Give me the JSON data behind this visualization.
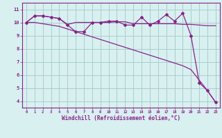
{
  "x": [
    0,
    1,
    2,
    3,
    4,
    5,
    6,
    7,
    8,
    9,
    10,
    11,
    12,
    13,
    14,
    15,
    16,
    17,
    18,
    19,
    20,
    21,
    22,
    23
  ],
  "line1": [
    10.0,
    10.5,
    10.5,
    10.4,
    10.3,
    9.8,
    9.3,
    9.3,
    10.0,
    10.0,
    10.1,
    10.1,
    9.8,
    9.8,
    10.4,
    9.8,
    10.1,
    10.6,
    10.1,
    10.7,
    9.0,
    5.4,
    4.8,
    3.9
  ],
  "line2": [
    10.0,
    10.5,
    10.5,
    10.4,
    10.3,
    9.85,
    10.0,
    10.0,
    10.0,
    10.0,
    10.0,
    10.05,
    10.05,
    9.9,
    9.9,
    9.9,
    9.9,
    9.9,
    9.9,
    9.85,
    9.85,
    9.8,
    9.75,
    9.75
  ],
  "line3": [
    10.0,
    10.0,
    9.9,
    9.8,
    9.7,
    9.5,
    9.3,
    9.1,
    8.9,
    8.7,
    8.5,
    8.3,
    8.1,
    7.9,
    7.7,
    7.5,
    7.3,
    7.1,
    6.9,
    6.7,
    6.4,
    5.6,
    4.8,
    3.9
  ],
  "line_color": "#882288",
  "bg_color": "#d8f0f0",
  "grid_color": "#aacccc",
  "xlabel": "Windchill (Refroidissement éolien,°C)",
  "ylabel_ticks": [
    4,
    5,
    6,
    7,
    8,
    9,
    10,
    11
  ],
  "xlim": [
    -0.5,
    23.5
  ],
  "ylim": [
    3.5,
    11.5
  ],
  "xticks": [
    0,
    1,
    2,
    3,
    4,
    5,
    6,
    7,
    8,
    9,
    10,
    11,
    12,
    13,
    14,
    15,
    16,
    17,
    18,
    19,
    20,
    21,
    22,
    23
  ],
  "xtick_labels": [
    "0",
    "1",
    "2",
    "3",
    "4",
    "5",
    "6",
    "7",
    "8",
    "9",
    "10",
    "11",
    "12",
    "13",
    "14",
    "15",
    "16",
    "17",
    "18",
    "19",
    "20",
    "21",
    "22",
    "23"
  ]
}
